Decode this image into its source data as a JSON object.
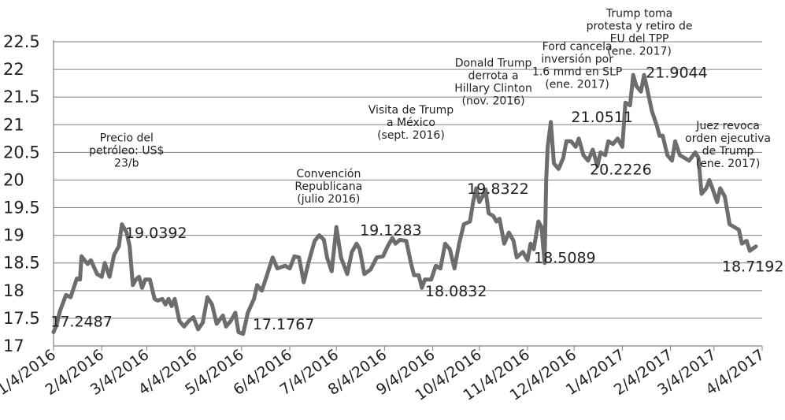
{
  "chart_data": {
    "type": "line",
    "x_tick_labels": [
      "1/4/2016",
      "2/4/2016",
      "3/4/2016",
      "4/4/2016",
      "5/4/2016",
      "6/4/2016",
      "7/4/2016",
      "8/4/2016",
      "9/4/2016",
      "10/4/2016",
      "11/4/2016",
      "12/4/2016",
      "1/4/2017",
      "2/4/2017",
      "3/4/2017",
      "4/4/2017"
    ],
    "y_ticks": [
      "17",
      "17.5",
      "18",
      "18.5",
      "19",
      "19.5",
      "20",
      "20.5",
      "21",
      "21.5",
      "22",
      "22.5"
    ],
    "ylim": [
      17,
      22.5
    ],
    "grid": true,
    "series": [
      {
        "points": [
          [
            "2016-01-04",
            17.25
          ],
          [
            "2016-01-06",
            17.38
          ],
          [
            "2016-01-08",
            17.62
          ],
          [
            "2016-01-12",
            17.92
          ],
          [
            "2016-01-15",
            17.88
          ],
          [
            "2016-01-19",
            18.22
          ],
          [
            "2016-01-21",
            18.2
          ],
          [
            "2016-01-22",
            18.62
          ],
          [
            "2016-01-26",
            18.48
          ],
          [
            "2016-01-28",
            18.55
          ],
          [
            "2016-02-01",
            18.3
          ],
          [
            "2016-02-04",
            18.25
          ],
          [
            "2016-02-06",
            18.5
          ],
          [
            "2016-02-09",
            18.25
          ],
          [
            "2016-02-12",
            18.65
          ],
          [
            "2016-02-15",
            18.8
          ],
          [
            "2016-02-17",
            19.2
          ],
          [
            "2016-02-20",
            19.05
          ],
          [
            "2016-02-22",
            18.8
          ],
          [
            "2016-02-24",
            18.1
          ],
          [
            "2016-02-26",
            18.2
          ],
          [
            "2016-02-28",
            18.25
          ],
          [
            "2016-03-01",
            18.05
          ],
          [
            "2016-03-03",
            18.2
          ],
          [
            "2016-03-06",
            18.2
          ],
          [
            "2016-03-09",
            17.85
          ],
          [
            "2016-03-11",
            17.82
          ],
          [
            "2016-03-14",
            17.85
          ],
          [
            "2016-03-16",
            17.75
          ],
          [
            "2016-03-18",
            17.85
          ],
          [
            "2016-03-20",
            17.72
          ],
          [
            "2016-03-22",
            17.85
          ],
          [
            "2016-03-25",
            17.45
          ],
          [
            "2016-03-28",
            17.35
          ],
          [
            "2016-03-31",
            17.45
          ],
          [
            "2016-04-03",
            17.52
          ],
          [
            "2016-04-06",
            17.3
          ],
          [
            "2016-04-09",
            17.42
          ],
          [
            "2016-04-12",
            17.88
          ],
          [
            "2016-04-15",
            17.75
          ],
          [
            "2016-04-18",
            17.4
          ],
          [
            "2016-04-22",
            17.55
          ],
          [
            "2016-04-24",
            17.35
          ],
          [
            "2016-04-27",
            17.45
          ],
          [
            "2016-04-30",
            17.6
          ],
          [
            "2016-05-02",
            17.25
          ],
          [
            "2016-05-05",
            17.22
          ],
          [
            "2016-05-08",
            17.6
          ],
          [
            "2016-05-12",
            17.85
          ],
          [
            "2016-05-14",
            18.1
          ],
          [
            "2016-05-17",
            18.0
          ],
          [
            "2016-05-20",
            18.25
          ],
          [
            "2016-05-24",
            18.6
          ],
          [
            "2016-05-27",
            18.4
          ],
          [
            "2016-06-01",
            18.45
          ],
          [
            "2016-06-04",
            18.4
          ],
          [
            "2016-06-07",
            18.62
          ],
          [
            "2016-06-10",
            18.6
          ],
          [
            "2016-06-13",
            18.15
          ],
          [
            "2016-06-16",
            18.5
          ],
          [
            "2016-06-20",
            18.9
          ],
          [
            "2016-06-23",
            19.0
          ],
          [
            "2016-06-26",
            18.92
          ],
          [
            "2016-06-28",
            18.6
          ],
          [
            "2016-07-01",
            18.35
          ],
          [
            "2016-07-04",
            19.15
          ],
          [
            "2016-07-07",
            18.6
          ],
          [
            "2016-07-11",
            18.3
          ],
          [
            "2016-07-14",
            18.7
          ],
          [
            "2016-07-17",
            18.85
          ],
          [
            "2016-07-19",
            18.75
          ],
          [
            "2016-07-22",
            18.3
          ],
          [
            "2016-07-26",
            18.38
          ],
          [
            "2016-07-30",
            18.6
          ],
          [
            "2016-08-03",
            18.62
          ],
          [
            "2016-08-06",
            18.8
          ],
          [
            "2016-08-09",
            18.95
          ],
          [
            "2016-08-11",
            18.85
          ],
          [
            "2016-08-14",
            18.92
          ],
          [
            "2016-08-18",
            18.9
          ],
          [
            "2016-08-21",
            18.5
          ],
          [
            "2016-08-23",
            18.28
          ],
          [
            "2016-08-26",
            18.28
          ],
          [
            "2016-08-28",
            18.05
          ],
          [
            "2016-08-30",
            18.2
          ],
          [
            "2016-09-03",
            18.2
          ],
          [
            "2016-09-06",
            18.45
          ],
          [
            "2016-09-09",
            18.4
          ],
          [
            "2016-09-12",
            18.85
          ],
          [
            "2016-09-15",
            18.75
          ],
          [
            "2016-09-18",
            18.4
          ],
          [
            "2016-09-21",
            18.85
          ],
          [
            "2016-09-24",
            19.2
          ],
          [
            "2016-09-28",
            19.25
          ],
          [
            "2016-09-30",
            19.6
          ],
          [
            "2016-10-02",
            19.85
          ],
          [
            "2016-10-04",
            19.6
          ],
          [
            "2016-10-06",
            19.7
          ],
          [
            "2016-10-08",
            19.83
          ],
          [
            "2016-10-10",
            19.4
          ],
          [
            "2016-10-13",
            19.35
          ],
          [
            "2016-10-15",
            19.25
          ],
          [
            "2016-10-17",
            19.3
          ],
          [
            "2016-10-20",
            18.85
          ],
          [
            "2016-10-23",
            19.05
          ],
          [
            "2016-10-26",
            18.9
          ],
          [
            "2016-10-28",
            18.6
          ],
          [
            "2016-10-30",
            18.65
          ],
          [
            "2016-11-01",
            18.7
          ],
          [
            "2016-11-04",
            18.55
          ],
          [
            "2016-11-06",
            18.85
          ],
          [
            "2016-11-08",
            18.75
          ],
          [
            "2016-11-11",
            19.25
          ],
          [
            "2016-11-13",
            19.15
          ],
          [
            "2016-11-15",
            18.5
          ],
          [
            "2016-11-16",
            20.0
          ],
          [
            "2016-11-17",
            20.6
          ],
          [
            "2016-11-19",
            21.05
          ],
          [
            "2016-11-21",
            20.3
          ],
          [
            "2016-11-24",
            20.2
          ],
          [
            "2016-11-27",
            20.4
          ],
          [
            "2016-11-29",
            20.7
          ],
          [
            "2016-12-02",
            20.7
          ],
          [
            "2016-12-05",
            20.6
          ],
          [
            "2016-12-07",
            20.75
          ],
          [
            "2016-12-10",
            20.45
          ],
          [
            "2016-12-13",
            20.35
          ],
          [
            "2016-12-16",
            20.55
          ],
          [
            "2016-12-19",
            20.25
          ],
          [
            "2016-12-21",
            20.5
          ],
          [
            "2016-12-24",
            20.45
          ],
          [
            "2016-12-26",
            20.7
          ],
          [
            "2016-12-29",
            20.65
          ],
          [
            "2017-01-01",
            20.75
          ],
          [
            "2017-01-04",
            20.6
          ],
          [
            "2017-01-06",
            21.4
          ],
          [
            "2017-01-09",
            21.35
          ],
          [
            "2017-01-11",
            21.9
          ],
          [
            "2017-01-13",
            21.7
          ],
          [
            "2017-01-16",
            21.6
          ],
          [
            "2017-01-18",
            21.9
          ],
          [
            "2017-01-20",
            21.65
          ],
          [
            "2017-01-23",
            21.25
          ],
          [
            "2017-01-26",
            21.0
          ],
          [
            "2017-01-28",
            20.8
          ],
          [
            "2017-01-30",
            20.8
          ],
          [
            "2017-02-02",
            20.45
          ],
          [
            "2017-02-05",
            20.35
          ],
          [
            "2017-02-07",
            20.7
          ],
          [
            "2017-02-10",
            20.45
          ],
          [
            "2017-02-13",
            20.4
          ],
          [
            "2017-02-16",
            20.35
          ],
          [
            "2017-02-20",
            20.5
          ],
          [
            "2017-02-22",
            20.4
          ],
          [
            "2017-02-24",
            19.75
          ],
          [
            "2017-02-27",
            19.85
          ],
          [
            "2017-03-01",
            20.0
          ],
          [
            "2017-03-03",
            19.85
          ],
          [
            "2017-03-06",
            19.6
          ],
          [
            "2017-03-08",
            19.85
          ],
          [
            "2017-03-11",
            19.7
          ],
          [
            "2017-03-14",
            19.2
          ],
          [
            "2017-03-17",
            19.15
          ],
          [
            "2017-03-20",
            19.1
          ],
          [
            "2017-03-22",
            18.85
          ],
          [
            "2017-03-25",
            18.9
          ],
          [
            "2017-03-27",
            18.72
          ],
          [
            "2017-03-31",
            18.8
          ]
        ]
      }
    ],
    "value_labels": [
      {
        "text": "17.2487",
        "x": "2016-01-22",
        "y": 17.35
      },
      {
        "text": "19.0392",
        "x": "2016-03-10",
        "y": 18.95
      },
      {
        "text": "17.1767",
        "x": "2016-05-31",
        "y": 17.3
      },
      {
        "text": "19.1283",
        "x": "2016-08-08",
        "y": 19.0
      },
      {
        "text": "18.0832",
        "x": "2016-09-19",
        "y": 17.9
      },
      {
        "text": "19.8322",
        "x": "2016-10-16",
        "y": 19.75
      },
      {
        "text": "18.5089",
        "x": "2016-11-28",
        "y": 18.5
      },
      {
        "text": "21.0511",
        "x": "2016-12-22",
        "y": 21.05
      },
      {
        "text": "20.2226",
        "x": "2017-01-03",
        "y": 20.1
      },
      {
        "text": "21.9044",
        "x": "2017-02-08",
        "y": 21.85
      },
      {
        "text": "18.7192",
        "x": "2017-03-29",
        "y": 18.35
      }
    ],
    "annotations": [
      {
        "lines": [
          "Precio del",
          "petróleo: US$",
          "23/b"
        ],
        "x": "2016-02-20",
        "y": 20.7
      },
      {
        "lines": [
          "Convención",
          "Republicana",
          "(julio 2016)"
        ],
        "x": "2016-06-29",
        "y": 20.05
      },
      {
        "lines": [
          "Visita de Trump",
          "a México",
          "(sept. 2016)"
        ],
        "x": "2016-08-21",
        "y": 21.2
      },
      {
        "lines": [
          "Donald Trump",
          "derrota a",
          "Hillary Clinton",
          "(nov. 2016)"
        ],
        "x": "2016-10-13",
        "y": 22.05
      },
      {
        "lines": [
          "Ford cancela",
          "inversión por",
          "1.6 mmd en SLP",
          "(ene. 2017)"
        ],
        "x": "2016-12-06",
        "y": 22.35
      },
      {
        "lines": [
          "Trump toma",
          "protesta y retiro de",
          "EU del TPP",
          "(ene. 2017)"
        ],
        "x": "2017-01-15",
        "y": 22.95
      },
      {
        "lines": [
          "Juez revoca",
          "orden ejecutiva",
          "de Trump",
          "(ene. 2017)"
        ],
        "x": "2017-03-13",
        "y": 20.92
      }
    ]
  }
}
